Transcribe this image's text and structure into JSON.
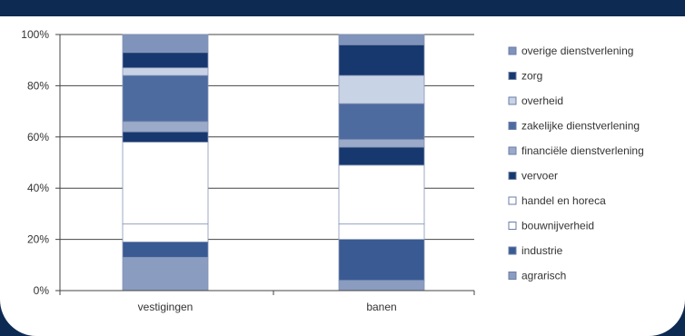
{
  "chart_data": {
    "type": "bar",
    "stacked": true,
    "normalized": true,
    "categories": [
      "vestigingen",
      "banen"
    ],
    "ylim": [
      0,
      100
    ],
    "yticks": [
      "0%",
      "20%",
      "40%",
      "60%",
      "80%",
      "100%"
    ],
    "grid": true,
    "legend_position": "right",
    "series": [
      {
        "name": "agrarisch",
        "color": "#8a9cc0",
        "values": [
          13,
          4
        ]
      },
      {
        "name": "industrie",
        "color": "#3a5a93",
        "values": [
          6,
          16
        ]
      },
      {
        "name": "bouwnijverheid",
        "color": "#ffffff",
        "values": [
          7,
          6
        ]
      },
      {
        "name": "handel en horeca",
        "color": "#ffffff",
        "values": [
          32,
          23
        ]
      },
      {
        "name": "vervoer",
        "color": "#17386e",
        "values": [
          4,
          7
        ]
      },
      {
        "name": "financiële dienstverlening",
        "color": "#9aaac8",
        "values": [
          4,
          3
        ]
      },
      {
        "name": "zakelijke dienstverlening",
        "color": "#4e6ba0",
        "values": [
          18,
          14
        ]
      },
      {
        "name": "overheid",
        "color": "#c9d3e6",
        "values": [
          3,
          11
        ]
      },
      {
        "name": "zorg",
        "color": "#17386e",
        "values": [
          6,
          12
        ]
      },
      {
        "name": "overige dienstverlening",
        "color": "#7f93bb",
        "values": [
          7,
          4
        ]
      }
    ]
  }
}
